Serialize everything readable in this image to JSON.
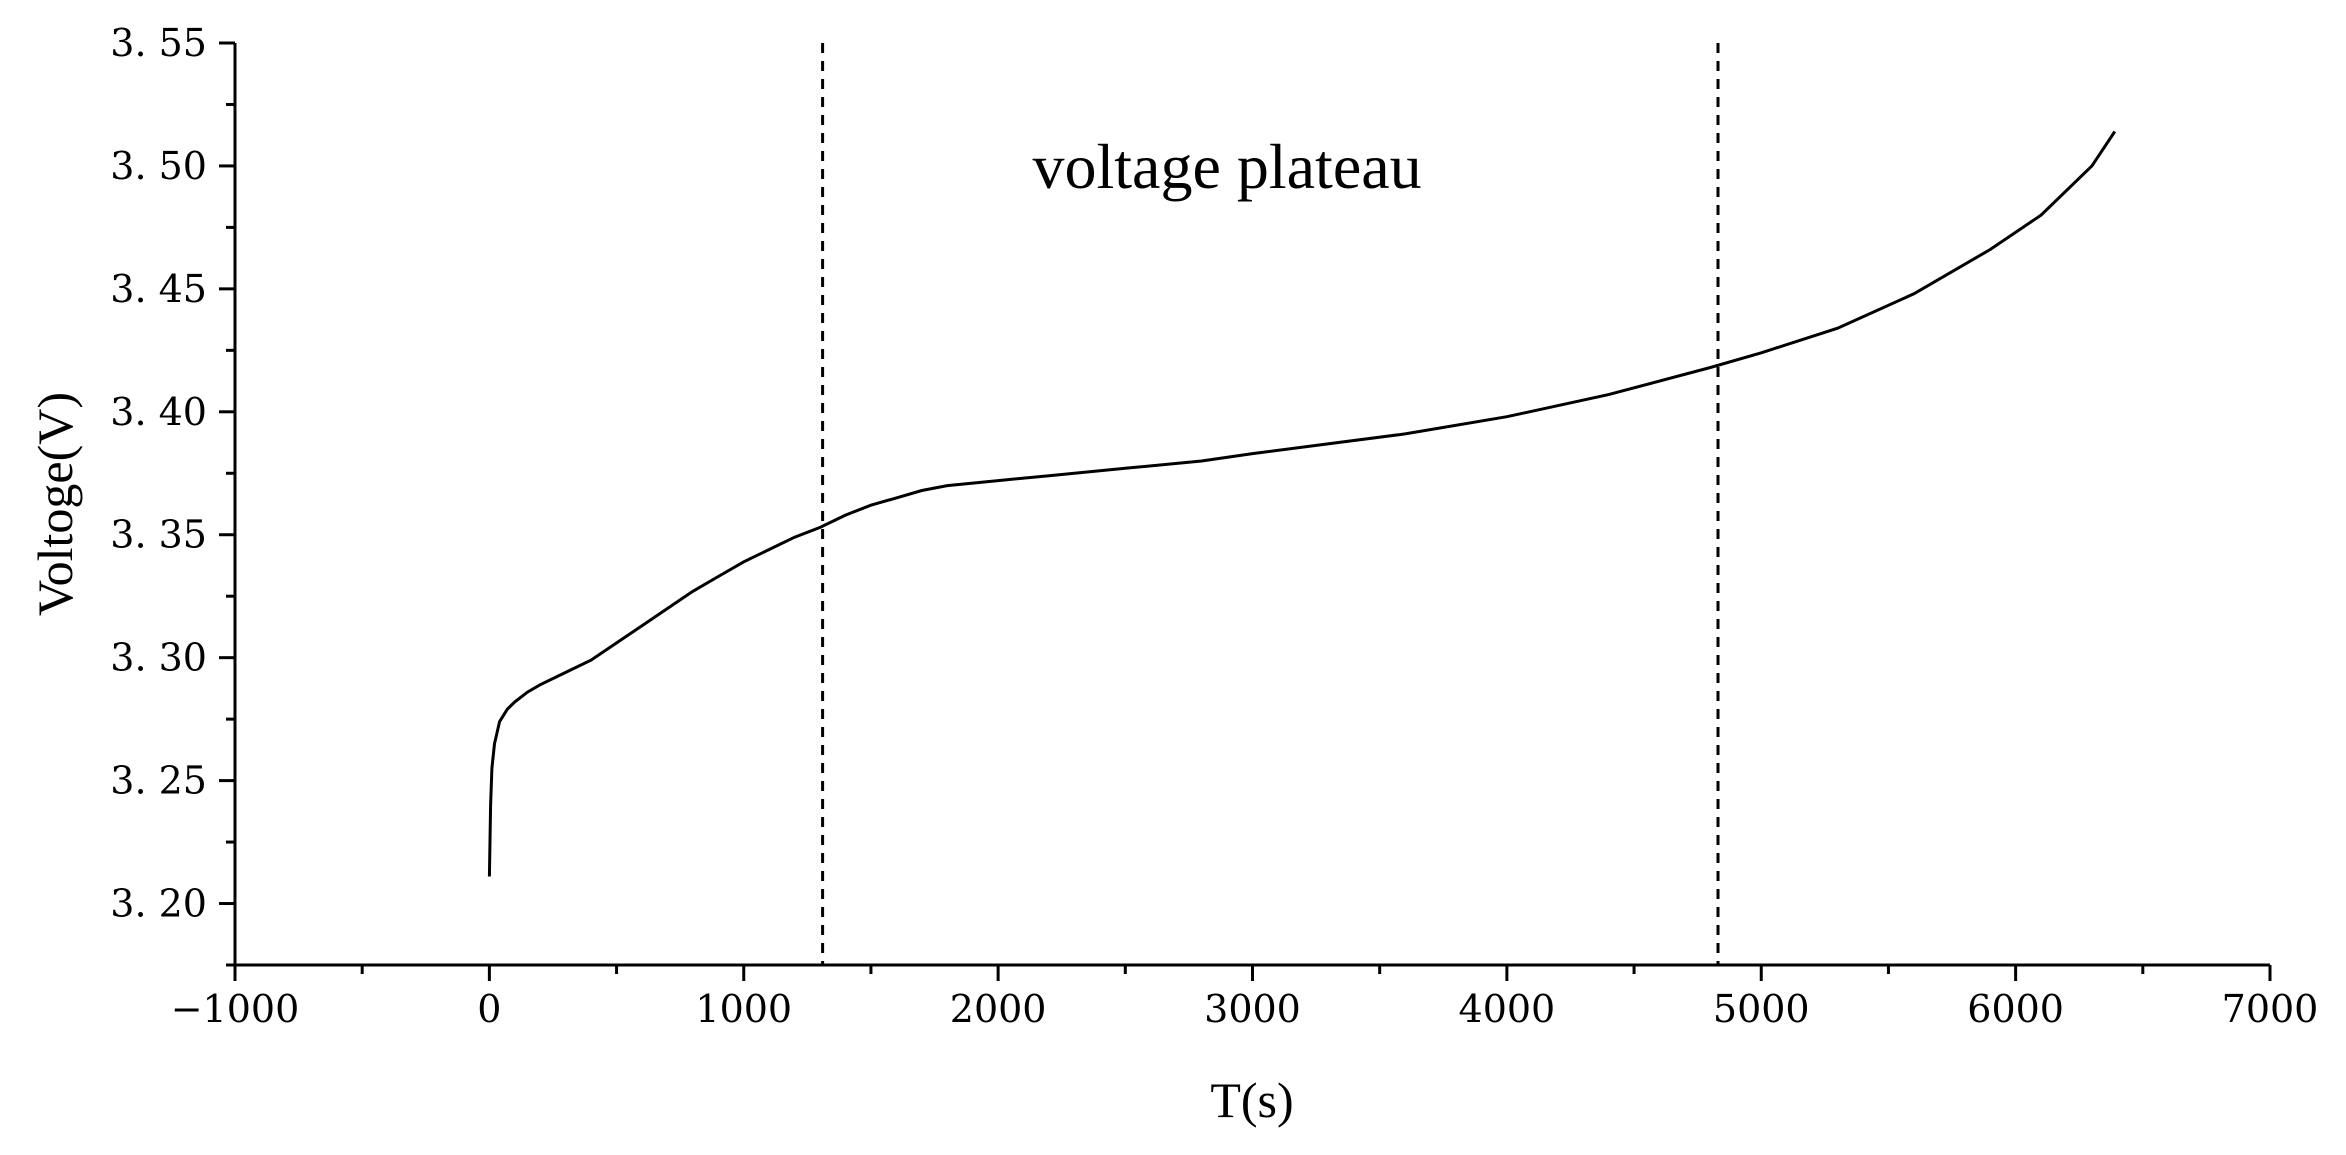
{
  "chart_data": {
    "type": "line",
    "title": "",
    "xlabel": "T(s)",
    "ylabel": "Voltoge(V)",
    "xlim": [
      -1000,
      7000
    ],
    "ylim": [
      3.175,
      3.55
    ],
    "x_ticks": [
      -1000,
      0,
      1000,
      2000,
      3000,
      4000,
      5000,
      6000,
      7000
    ],
    "x_tick_labels": [
      "−1000",
      "0",
      "1000",
      "2000",
      "3000",
      "4000",
      "5000",
      "6000",
      "7000"
    ],
    "y_ticks": [
      3.2,
      3.25,
      3.3,
      3.35,
      3.4,
      3.45,
      3.5,
      3.55
    ],
    "y_tick_labels": [
      "3. 20",
      "3. 25",
      "3. 30",
      "3. 35",
      "3. 40",
      "3. 45",
      "3. 50",
      "3. 55"
    ],
    "grid": false,
    "series": [
      {
        "x": [
          0,
          5,
          10,
          20,
          40,
          70,
          100,
          150,
          200,
          300,
          400,
          500,
          600,
          700,
          800,
          900,
          1000,
          1100,
          1200,
          1300,
          1400,
          1500,
          1600,
          1700,
          1800,
          1900,
          2000,
          2200,
          2500,
          2800,
          3000,
          3300,
          3600,
          4000,
          4400,
          4800,
          5000,
          5300,
          5600,
          5900,
          6100,
          6300,
          6390
        ],
        "y": [
          3.211,
          3.24,
          3.255,
          3.265,
          3.274,
          3.279,
          3.282,
          3.286,
          3.289,
          3.294,
          3.299,
          3.306,
          3.313,
          3.32,
          3.327,
          3.333,
          3.339,
          3.344,
          3.349,
          3.353,
          3.358,
          3.362,
          3.365,
          3.368,
          3.37,
          3.371,
          3.372,
          3.374,
          3.377,
          3.38,
          3.383,
          3.387,
          3.391,
          3.398,
          3.407,
          3.418,
          3.424,
          3.434,
          3.448,
          3.466,
          3.48,
          3.5,
          3.514
        ]
      }
    ],
    "reference_lines_x": [
      1310,
      4830
    ],
    "annotations": [
      {
        "text": "voltage plateau",
        "x": 2900,
        "y": 3.5
      }
    ]
  }
}
